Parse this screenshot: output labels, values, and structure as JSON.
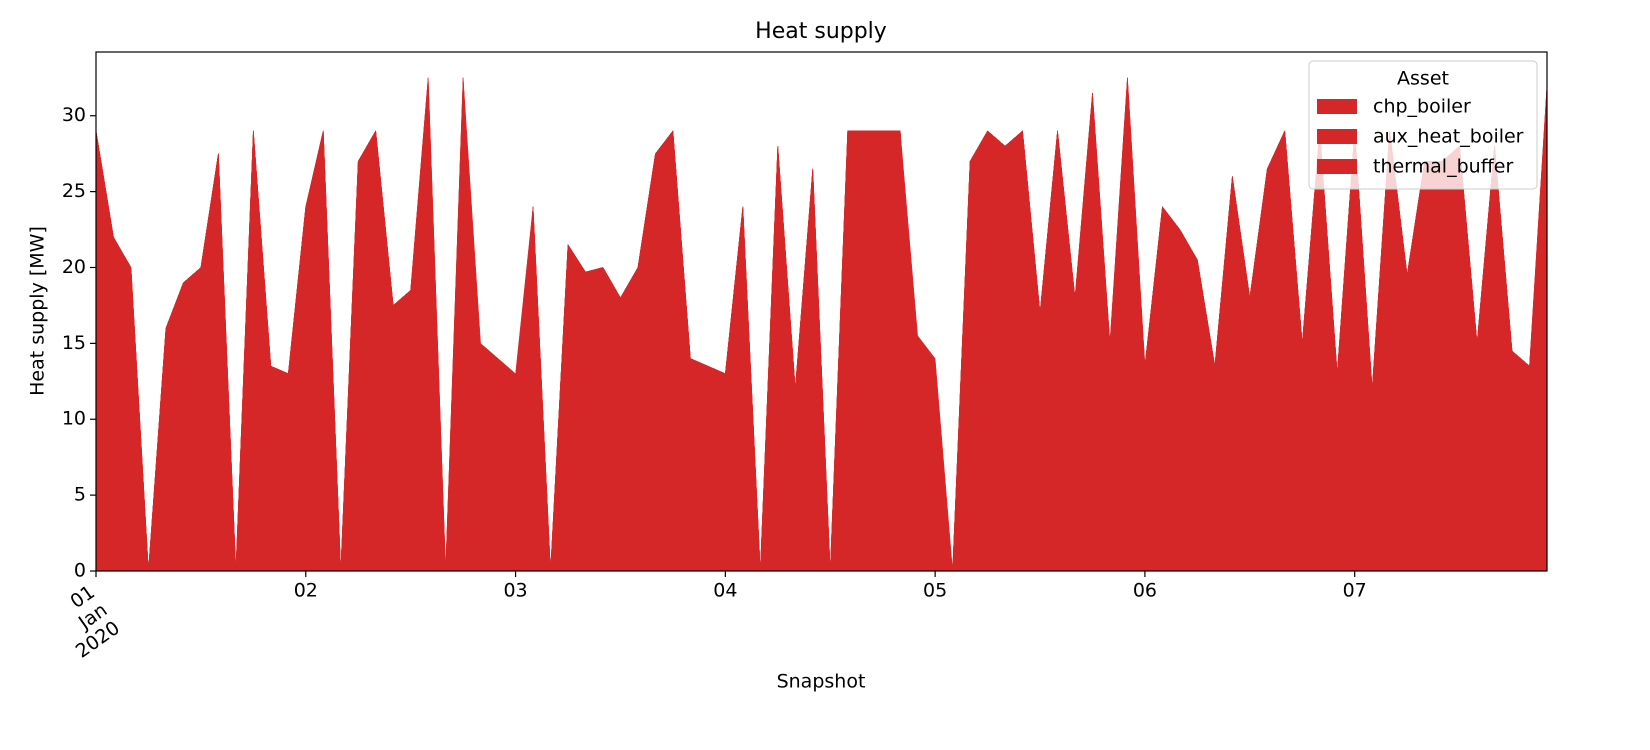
{
  "chart_data": {
    "type": "stacked_area",
    "title": "Heat supply",
    "x_label": "Snapshot",
    "y_label": "Heat supply [MW]",
    "legend_title": "Asset",
    "legend_position": "upper right",
    "x": [
      "2020-01-01T00:00",
      "2020-01-01T02:00",
      "2020-01-01T04:00",
      "2020-01-01T06:00",
      "2020-01-01T08:00",
      "2020-01-01T10:00",
      "2020-01-01T12:00",
      "2020-01-01T14:00",
      "2020-01-01T16:00",
      "2020-01-01T18:00",
      "2020-01-01T20:00",
      "2020-01-01T22:00",
      "2020-01-02T00:00",
      "2020-01-02T02:00",
      "2020-01-02T04:00",
      "2020-01-02T06:00",
      "2020-01-02T08:00",
      "2020-01-02T10:00",
      "2020-01-02T12:00",
      "2020-01-02T14:00",
      "2020-01-02T16:00",
      "2020-01-02T18:00",
      "2020-01-02T20:00",
      "2020-01-02T22:00",
      "2020-01-03T00:00",
      "2020-01-03T02:00",
      "2020-01-03T04:00",
      "2020-01-03T06:00",
      "2020-01-03T08:00",
      "2020-01-03T10:00",
      "2020-01-03T12:00",
      "2020-01-03T14:00",
      "2020-01-03T16:00",
      "2020-01-03T18:00",
      "2020-01-03T20:00",
      "2020-01-03T22:00",
      "2020-01-04T00:00",
      "2020-01-04T02:00",
      "2020-01-04T04:00",
      "2020-01-04T06:00",
      "2020-01-04T08:00",
      "2020-01-04T10:00",
      "2020-01-04T12:00",
      "2020-01-04T14:00",
      "2020-01-04T16:00",
      "2020-01-04T18:00",
      "2020-01-04T20:00",
      "2020-01-04T22:00",
      "2020-01-05T00:00",
      "2020-01-05T02:00",
      "2020-01-05T04:00",
      "2020-01-05T06:00",
      "2020-01-05T08:00",
      "2020-01-05T10:00",
      "2020-01-05T12:00",
      "2020-01-05T14:00",
      "2020-01-05T16:00",
      "2020-01-05T18:00",
      "2020-01-05T20:00",
      "2020-01-05T22:00",
      "2020-01-06T00:00",
      "2020-01-06T02:00",
      "2020-01-06T04:00",
      "2020-01-06T06:00",
      "2020-01-06T08:00",
      "2020-01-06T10:00",
      "2020-01-06T12:00",
      "2020-01-06T14:00",
      "2020-01-06T16:00",
      "2020-01-06T18:00",
      "2020-01-06T20:00",
      "2020-01-06T22:00",
      "2020-01-07T00:00",
      "2020-01-07T02:00",
      "2020-01-07T04:00",
      "2020-01-07T06:00",
      "2020-01-07T08:00",
      "2020-01-07T10:00",
      "2020-01-07T12:00",
      "2020-01-07T14:00",
      "2020-01-07T16:00",
      "2020-01-07T18:00",
      "2020-01-07T20:00",
      "2020-01-07T22:00"
    ],
    "series": [
      {
        "name": "chp_boiler",
        "color": "#d62728",
        "values": [
          29,
          22,
          20,
          0,
          16,
          19,
          20,
          27.5,
          0,
          29,
          13.5,
          13,
          24,
          29,
          0,
          27,
          29,
          17.5,
          18.5,
          29,
          0,
          29,
          11.5,
          10.5,
          9.5,
          24,
          0,
          21.5,
          19.7,
          20,
          18,
          20,
          27.5,
          29,
          14,
          13.5,
          13,
          24,
          0,
          28,
          12,
          26.5,
          0,
          29,
          29,
          29,
          29,
          12,
          10.5,
          0,
          27,
          29,
          28,
          29,
          17,
          29,
          18,
          29,
          15,
          29,
          13.5,
          24,
          22.5,
          20.5,
          13.5,
          26,
          18,
          26.5,
          29,
          15,
          29,
          13,
          29,
          12,
          29,
          19.5,
          27,
          27,
          28,
          15,
          28,
          14.5,
          13.5,
          29
        ]
      },
      {
        "name": "aux_heat_boiler",
        "color": "#d62728",
        "values": [
          0,
          0,
          0,
          0,
          0,
          0,
          0,
          0,
          0,
          0,
          0,
          0,
          0,
          0,
          0,
          0,
          0,
          0,
          0,
          3.5,
          0,
          3.5,
          0,
          0,
          0,
          0,
          0,
          0,
          0,
          0,
          0,
          0,
          0,
          0,
          0,
          0,
          0,
          0,
          0,
          0,
          0,
          0,
          0,
          0,
          0,
          0,
          0,
          0,
          0,
          0,
          0,
          0,
          0,
          0,
          0,
          0,
          0,
          2.5,
          0,
          3.5,
          0,
          0,
          0,
          0,
          0,
          0,
          0,
          0,
          0,
          0,
          0,
          0,
          0,
          0,
          0,
          0,
          0,
          0,
          0,
          0,
          0,
          0,
          0,
          3
        ]
      },
      {
        "name": "thermal_buffer",
        "color": "#d62728",
        "values": [
          0,
          0,
          0,
          0,
          0,
          0,
          0,
          0,
          0,
          0,
          0,
          0,
          0,
          0,
          0,
          0,
          0,
          0,
          0,
          0,
          0,
          0,
          3.5,
          3.5,
          3.5,
          0,
          0,
          0,
          0,
          0,
          0,
          0,
          0,
          0,
          0,
          0,
          0,
          0,
          0,
          0,
          0,
          0,
          0,
          0,
          0,
          0,
          0,
          3.5,
          3.5,
          0,
          0,
          0,
          0,
          0,
          0,
          0,
          0,
          0,
          0,
          0,
          0,
          0,
          0,
          0,
          0,
          0,
          0,
          0,
          0,
          0,
          0,
          0,
          0,
          0,
          0,
          0,
          0,
          0,
          0,
          0,
          0,
          0,
          0,
          0
        ]
      }
    ],
    "xlim": [
      "2020-01-01T00:00",
      "2020-01-07T22:00"
    ],
    "xticks": [
      {
        "value": "2020-01-01T00:00",
        "label": "01 Jan 2020"
      },
      {
        "value": "2020-01-02T00:00",
        "label": "02"
      },
      {
        "value": "2020-01-03T00:00",
        "label": "03"
      },
      {
        "value": "2020-01-04T00:00",
        "label": "04"
      },
      {
        "value": "2020-01-05T00:00",
        "label": "05"
      },
      {
        "value": "2020-01-06T00:00",
        "label": "06"
      },
      {
        "value": "2020-01-07T00:00",
        "label": "07"
      }
    ],
    "ylim": [
      0,
      34.2
    ],
    "yticks": [
      0,
      5,
      10,
      15,
      20,
      25,
      30
    ]
  }
}
